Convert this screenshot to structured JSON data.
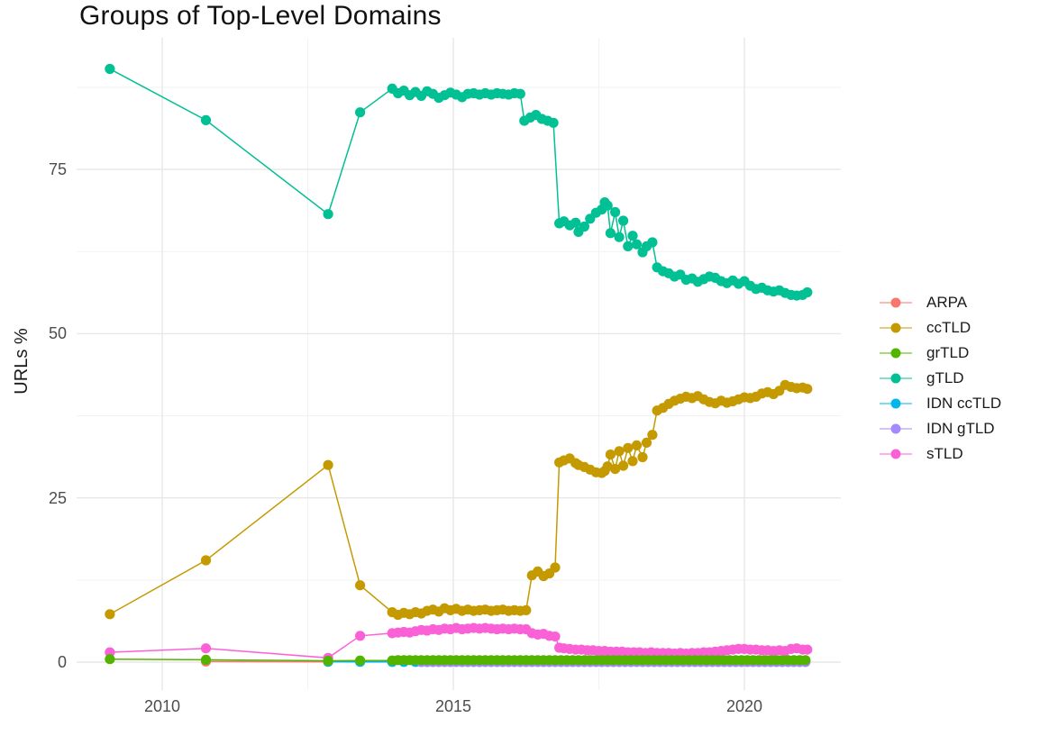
{
  "chart_data": {
    "type": "scatter",
    "title": "Groups of Top-Level Domains",
    "xlabel": "",
    "ylabel": "URLs %",
    "x_tick_values": [
      2010,
      2015,
      2020
    ],
    "x_tick_labels": [
      "2010",
      "2015",
      "2020"
    ],
    "x_minor": [
      2012.5,
      2017.5
    ],
    "y_tick_values": [
      0,
      25,
      50,
      75
    ],
    "y_tick_labels": [
      "0",
      "25",
      "50",
      "75"
    ],
    "y_minor": [
      12.5,
      37.5,
      62.5,
      87.5
    ],
    "xlim": [
      2008.45,
      2021.65
    ],
    "ylim": [
      -4.6,
      95.1
    ],
    "grid": true,
    "legend_position": "right",
    "background": "#ffffff",
    "grid_color_major": "#e7e7e7",
    "grid_color_minor": "#f2f2f2",
    "tick_label_color": "#4d4d4d",
    "draw_order": [
      "ARPA",
      "IDN ccTLD",
      "IDN gTLD",
      "ccTLD",
      "gTLD",
      "sTLD",
      "grTLD"
    ],
    "series": [
      {
        "name": "ARPA",
        "color": "#F8766D",
        "points": [
          [
            2010.75,
            0.1
          ],
          [
            2012.85,
            0.05
          ]
        ]
      },
      {
        "name": "ccTLD",
        "color": "#C49A00",
        "points": [
          [
            2009.1,
            7.3
          ],
          [
            2010.75,
            15.5
          ],
          [
            2012.85,
            30.0
          ],
          [
            2013.4,
            11.7
          ],
          [
            2013.95,
            7.6
          ],
          [
            2014.05,
            7.2
          ],
          [
            2014.15,
            7.5
          ],
          [
            2014.25,
            7.3
          ],
          [
            2014.35,
            7.6
          ],
          [
            2014.45,
            7.4
          ],
          [
            2014.55,
            7.8
          ],
          [
            2014.65,
            8.0
          ],
          [
            2014.75,
            7.7
          ],
          [
            2014.85,
            8.2
          ],
          [
            2014.95,
            7.9
          ],
          [
            2015.05,
            8.1
          ],
          [
            2015.15,
            7.8
          ],
          [
            2015.25,
            8.0
          ],
          [
            2015.35,
            7.8
          ],
          [
            2015.45,
            7.9
          ],
          [
            2015.55,
            8.0
          ],
          [
            2015.65,
            7.8
          ],
          [
            2015.75,
            7.9
          ],
          [
            2015.85,
            8.0
          ],
          [
            2015.95,
            7.8
          ],
          [
            2016.05,
            7.9
          ],
          [
            2016.15,
            7.8
          ],
          [
            2016.25,
            7.9
          ],
          [
            2016.35,
            13.2
          ],
          [
            2016.45,
            13.8
          ],
          [
            2016.55,
            13.1
          ],
          [
            2016.65,
            13.5
          ],
          [
            2016.75,
            14.4
          ],
          [
            2016.82,
            30.4
          ],
          [
            2016.9,
            30.7
          ],
          [
            2017.0,
            31.0
          ],
          [
            2017.1,
            30.3
          ],
          [
            2017.15,
            30.0
          ],
          [
            2017.25,
            29.7
          ],
          [
            2017.35,
            29.3
          ],
          [
            2017.45,
            28.9
          ],
          [
            2017.55,
            28.8
          ],
          [
            2017.6,
            29.1
          ],
          [
            2017.65,
            29.8
          ],
          [
            2017.7,
            31.6
          ],
          [
            2017.78,
            29.4
          ],
          [
            2017.85,
            32.1
          ],
          [
            2017.92,
            29.9
          ],
          [
            2018.0,
            32.6
          ],
          [
            2018.08,
            30.6
          ],
          [
            2018.15,
            33.0
          ],
          [
            2018.25,
            31.2
          ],
          [
            2018.32,
            33.4
          ],
          [
            2018.42,
            34.6
          ],
          [
            2018.5,
            38.3
          ],
          [
            2018.6,
            38.7
          ],
          [
            2018.7,
            39.3
          ],
          [
            2018.8,
            39.8
          ],
          [
            2018.9,
            40.1
          ],
          [
            2019.0,
            40.4
          ],
          [
            2019.1,
            40.2
          ],
          [
            2019.2,
            40.5
          ],
          [
            2019.3,
            40.0
          ],
          [
            2019.4,
            39.6
          ],
          [
            2019.5,
            39.4
          ],
          [
            2019.6,
            39.8
          ],
          [
            2019.7,
            39.5
          ],
          [
            2019.8,
            39.7
          ],
          [
            2019.9,
            40.0
          ],
          [
            2020.0,
            40.3
          ],
          [
            2020.1,
            40.2
          ],
          [
            2020.2,
            40.4
          ],
          [
            2020.3,
            40.9
          ],
          [
            2020.4,
            41.1
          ],
          [
            2020.5,
            40.8
          ],
          [
            2020.6,
            41.3
          ],
          [
            2020.7,
            42.2
          ],
          [
            2020.8,
            41.9
          ],
          [
            2020.9,
            41.7
          ],
          [
            2021.0,
            41.8
          ],
          [
            2021.08,
            41.6
          ]
        ]
      },
      {
        "name": "grTLD",
        "color": "#53B400",
        "points": [
          [
            2009.1,
            0.45
          ],
          [
            2010.75,
            0.35
          ],
          [
            2012.85,
            0.2
          ],
          [
            2013.4,
            0.25
          ],
          [
            2013.95,
            0.25
          ]
        ],
        "dense": {
          "from": 2014.05,
          "to": 2021.08,
          "step": 0.1,
          "value": 0.3
        }
      },
      {
        "name": "gTLD",
        "color": "#00C094",
        "points": [
          [
            2009.1,
            90.3
          ],
          [
            2010.75,
            82.5
          ],
          [
            2012.85,
            68.2
          ],
          [
            2013.4,
            83.7
          ],
          [
            2013.95,
            87.3
          ],
          [
            2014.05,
            86.6
          ],
          [
            2014.15,
            87.0
          ],
          [
            2014.25,
            86.3
          ],
          [
            2014.35,
            86.8
          ],
          [
            2014.45,
            86.2
          ],
          [
            2014.55,
            86.9
          ],
          [
            2014.65,
            86.5
          ],
          [
            2014.75,
            85.9
          ],
          [
            2014.85,
            86.3
          ],
          [
            2014.95,
            86.7
          ],
          [
            2015.05,
            86.4
          ],
          [
            2015.15,
            86.0
          ],
          [
            2015.25,
            86.5
          ],
          [
            2015.35,
            86.6
          ],
          [
            2015.45,
            86.4
          ],
          [
            2015.55,
            86.6
          ],
          [
            2015.65,
            86.4
          ],
          [
            2015.75,
            86.6
          ],
          [
            2015.85,
            86.5
          ],
          [
            2015.95,
            86.4
          ],
          [
            2016.05,
            86.6
          ],
          [
            2016.15,
            86.5
          ],
          [
            2016.22,
            82.4
          ],
          [
            2016.32,
            82.9
          ],
          [
            2016.42,
            83.3
          ],
          [
            2016.52,
            82.7
          ],
          [
            2016.62,
            82.4
          ],
          [
            2016.72,
            82.1
          ],
          [
            2016.82,
            66.8
          ],
          [
            2016.9,
            67.1
          ],
          [
            2017.0,
            66.5
          ],
          [
            2017.1,
            66.9
          ],
          [
            2017.15,
            65.5
          ],
          [
            2017.25,
            66.3
          ],
          [
            2017.35,
            67.5
          ],
          [
            2017.45,
            68.4
          ],
          [
            2017.55,
            68.9
          ],
          [
            2017.6,
            70.0
          ],
          [
            2017.65,
            69.5
          ],
          [
            2017.7,
            65.3
          ],
          [
            2017.78,
            68.5
          ],
          [
            2017.85,
            64.7
          ],
          [
            2017.92,
            67.2
          ],
          [
            2018.0,
            63.3
          ],
          [
            2018.08,
            64.9
          ],
          [
            2018.15,
            63.6
          ],
          [
            2018.25,
            62.4
          ],
          [
            2018.32,
            63.3
          ],
          [
            2018.42,
            63.9
          ],
          [
            2018.5,
            60.1
          ],
          [
            2018.6,
            59.5
          ],
          [
            2018.7,
            59.2
          ],
          [
            2018.8,
            58.7
          ],
          [
            2018.9,
            59.0
          ],
          [
            2019.0,
            58.2
          ],
          [
            2019.1,
            58.4
          ],
          [
            2019.2,
            57.9
          ],
          [
            2019.3,
            58.3
          ],
          [
            2019.4,
            58.7
          ],
          [
            2019.5,
            58.5
          ],
          [
            2019.6,
            58.0
          ],
          [
            2019.7,
            57.7
          ],
          [
            2019.8,
            58.1
          ],
          [
            2019.9,
            57.6
          ],
          [
            2020.0,
            58.0
          ],
          [
            2020.1,
            57.3
          ],
          [
            2020.2,
            56.8
          ],
          [
            2020.3,
            57.0
          ],
          [
            2020.4,
            56.6
          ],
          [
            2020.5,
            56.4
          ],
          [
            2020.6,
            56.6
          ],
          [
            2020.7,
            56.2
          ],
          [
            2020.8,
            55.9
          ],
          [
            2020.9,
            55.8
          ],
          [
            2021.0,
            55.9
          ],
          [
            2021.08,
            56.3
          ]
        ]
      },
      {
        "name": "IDN ccTLD",
        "color": "#00B6EB",
        "points": [
          [
            2012.85,
            0.05
          ],
          [
            2013.4,
            0.04
          ],
          [
            2013.95,
            0.03
          ],
          [
            2014.15,
            0.03
          ],
          [
            2014.35,
            0.03
          ],
          [
            2014.55,
            0.03
          ]
        ]
      },
      {
        "name": "IDN gTLD",
        "color": "#A58AFF",
        "points": [],
        "dense": {
          "from": 2014.45,
          "to": 2021.08,
          "step": 0.1,
          "value": 0.02
        }
      },
      {
        "name": "sTLD",
        "color": "#FB61D7",
        "points": [
          [
            2009.1,
            1.5
          ],
          [
            2010.75,
            2.1
          ],
          [
            2012.85,
            0.65
          ],
          [
            2013.4,
            4.0
          ],
          [
            2013.95,
            4.4
          ],
          [
            2014.05,
            4.5
          ],
          [
            2014.15,
            4.6
          ],
          [
            2014.25,
            4.5
          ],
          [
            2014.35,
            4.7
          ],
          [
            2014.45,
            4.9
          ],
          [
            2014.55,
            4.8
          ],
          [
            2014.65,
            5.0
          ],
          [
            2014.75,
            4.9
          ],
          [
            2014.85,
            5.1
          ],
          [
            2014.95,
            5.0
          ],
          [
            2015.05,
            5.2
          ],
          [
            2015.15,
            5.0
          ],
          [
            2015.25,
            5.1
          ],
          [
            2015.35,
            5.2
          ],
          [
            2015.45,
            5.1
          ],
          [
            2015.55,
            5.2
          ],
          [
            2015.65,
            5.1
          ],
          [
            2015.75,
            5.0
          ],
          [
            2015.85,
            5.1
          ],
          [
            2015.95,
            5.0
          ],
          [
            2016.05,
            5.1
          ],
          [
            2016.15,
            5.0
          ],
          [
            2016.25,
            5.0
          ],
          [
            2016.35,
            4.4
          ],
          [
            2016.45,
            4.2
          ],
          [
            2016.55,
            4.3
          ],
          [
            2016.65,
            4.0
          ],
          [
            2016.75,
            3.9
          ],
          [
            2016.82,
            2.2
          ],
          [
            2016.9,
            2.1
          ],
          [
            2017.0,
            2.0
          ],
          [
            2017.1,
            1.9
          ],
          [
            2017.2,
            1.9
          ],
          [
            2017.3,
            1.8
          ],
          [
            2017.4,
            1.8
          ],
          [
            2017.5,
            1.7
          ],
          [
            2017.6,
            1.7
          ],
          [
            2017.7,
            1.6
          ],
          [
            2017.8,
            1.6
          ],
          [
            2017.9,
            1.6
          ],
          [
            2018.0,
            1.5
          ],
          [
            2018.1,
            1.5
          ],
          [
            2018.2,
            1.5
          ],
          [
            2018.3,
            1.4
          ],
          [
            2018.4,
            1.5
          ],
          [
            2018.5,
            1.4
          ],
          [
            2018.6,
            1.4
          ],
          [
            2018.7,
            1.4
          ],
          [
            2018.8,
            1.3
          ],
          [
            2018.9,
            1.4
          ],
          [
            2019.0,
            1.3
          ],
          [
            2019.1,
            1.4
          ],
          [
            2019.2,
            1.4
          ],
          [
            2019.3,
            1.5
          ],
          [
            2019.4,
            1.5
          ],
          [
            2019.5,
            1.6
          ],
          [
            2019.6,
            1.7
          ],
          [
            2019.7,
            1.8
          ],
          [
            2019.8,
            1.9
          ],
          [
            2019.9,
            2.0
          ],
          [
            2020.0,
            2.0
          ],
          [
            2020.1,
            1.9
          ],
          [
            2020.2,
            1.9
          ],
          [
            2020.3,
            1.8
          ],
          [
            2020.4,
            1.8
          ],
          [
            2020.5,
            1.7
          ],
          [
            2020.6,
            1.8
          ],
          [
            2020.7,
            1.7
          ],
          [
            2020.8,
            2.0
          ],
          [
            2020.9,
            2.1
          ],
          [
            2021.0,
            1.9
          ],
          [
            2021.08,
            1.9
          ]
        ]
      }
    ]
  }
}
